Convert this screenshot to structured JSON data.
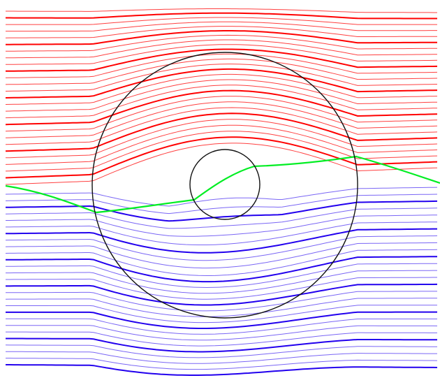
{
  "diagram": {
    "description_free": true,
    "colors": {
      "background": "#ffffff",
      "upper_lines": "#ff0000",
      "lower_lines": "#2200ee",
      "divider_line": "#00ee22",
      "circles": "#111111"
    },
    "line_counts": {
      "upper": 27,
      "lower": 27
    },
    "bold_every": 4
  }
}
